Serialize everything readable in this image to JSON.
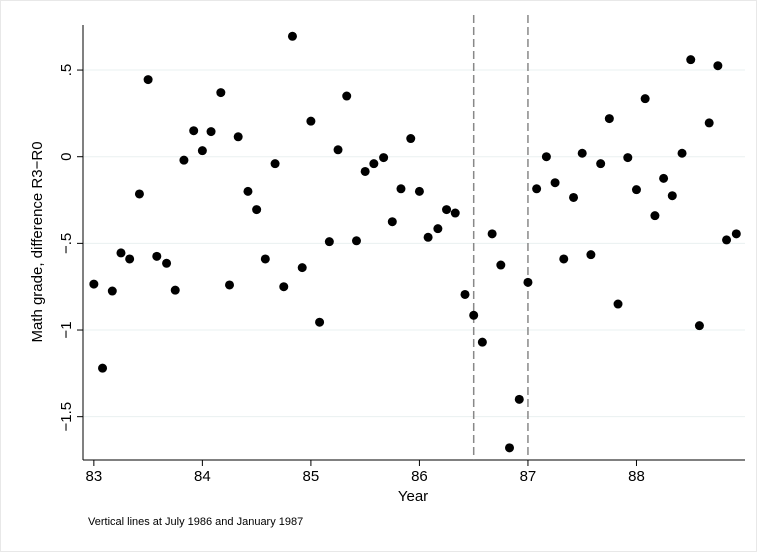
{
  "chart_data": {
    "type": "scatter",
    "x_label": "Year",
    "y_label": "Math grade, difference R3−R0",
    "note": "Vertical lines at July 1986 and January 1987",
    "color": "#000000",
    "grid": true,
    "xlim": [
      82.9,
      89.0
    ],
    "ylim": [
      -1.75,
      0.76
    ],
    "xticks": [
      83,
      84,
      85,
      86,
      87,
      88
    ],
    "yticks": [
      {
        "value": 0.5,
        "label": ".5"
      },
      0,
      {
        "value": -0.5,
        "label": "−.5"
      },
      {
        "value": -1,
        "label": "−1"
      },
      {
        "value": -1.5,
        "label": "−1.5"
      }
    ],
    "vlines": [
      86.5,
      87
    ],
    "x": [
      83.0,
      83.08,
      83.17,
      83.25,
      83.33,
      83.42,
      83.5,
      83.58,
      83.67,
      83.75,
      83.83,
      83.92,
      84.0,
      84.08,
      84.17,
      84.25,
      84.33,
      84.42,
      84.5,
      84.58,
      84.67,
      84.75,
      84.83,
      84.92,
      85.0,
      85.08,
      85.17,
      85.25,
      85.33,
      85.42,
      85.5,
      85.58,
      85.67,
      85.75,
      85.83,
      85.92,
      86.0,
      86.08,
      86.17,
      86.25,
      86.33,
      86.42,
      86.5,
      86.58,
      86.67,
      86.75,
      86.83,
      86.92,
      87.0,
      87.08,
      87.17,
      87.25,
      87.33,
      87.42,
      87.5,
      87.58,
      87.67,
      87.75,
      87.83,
      87.92,
      88.0,
      88.08,
      88.17,
      88.25,
      88.33,
      88.42,
      88.5,
      88.58,
      88.67,
      88.75,
      88.83,
      88.92
    ],
    "values": [
      -0.735,
      -1.22,
      -0.775,
      -0.555,
      -0.59,
      -0.215,
      0.445,
      -0.575,
      -0.615,
      -0.77,
      -0.02,
      0.15,
      0.035,
      0.145,
      0.37,
      -0.74,
      0.115,
      -0.2,
      -0.305,
      -0.59,
      -0.04,
      -0.75,
      0.695,
      -0.64,
      0.205,
      -0.955,
      -0.49,
      0.04,
      0.35,
      -0.485,
      -0.085,
      -0.04,
      -0.005,
      -0.375,
      -0.185,
      0.105,
      -0.2,
      -0.465,
      -0.415,
      -0.305,
      -0.325,
      -0.795,
      -0.915,
      -1.07,
      -0.445,
      -0.625,
      -1.68,
      -1.4,
      -0.725,
      -0.185,
      0.0,
      -0.15,
      -0.59,
      -0.235,
      0.02,
      -0.565,
      -0.04,
      0.22,
      -0.85,
      -0.005,
      -0.19,
      0.335,
      -0.34,
      -0.125,
      -0.225,
      0.02,
      0.56,
      -0.975,
      0.195,
      0.525,
      -0.48,
      -0.445
    ]
  }
}
